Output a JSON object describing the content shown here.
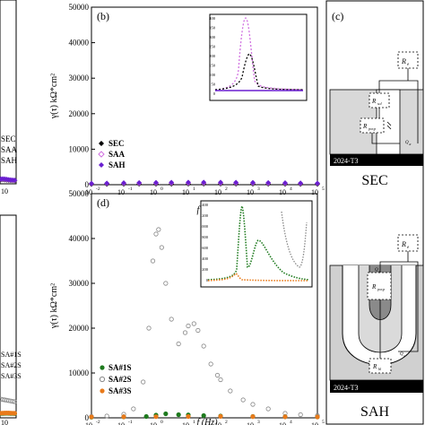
{
  "chart_data": [
    {
      "id": "a",
      "type": "scatter",
      "panel_label": "",
      "x": [
        0.01,
        0.1,
        1,
        10,
        100,
        1000,
        10000,
        100000
      ],
      "ytick_labels": [],
      "ylabel": "",
      "xlabel": "",
      "xtick_labels": [
        "10"
      ],
      "legend": [
        "SEC",
        "SAA",
        "SAH"
      ],
      "series": [
        {
          "name": "SEC",
          "color": "#000000",
          "marker": "diamond",
          "y": [
            400,
            420,
            380,
            300,
            250,
            200,
            180,
            160
          ]
        },
        {
          "name": "SAA",
          "color": "#d070e0",
          "marker": "diamond-open",
          "y": [
            500,
            520,
            480,
            400,
            320,
            260,
            220,
            200
          ]
        },
        {
          "name": "SAH",
          "color": "#6a1fd0",
          "marker": "diamond",
          "y": [
            600,
            640,
            600,
            520,
            420,
            340,
            300,
            260
          ]
        }
      ]
    },
    {
      "id": "b",
      "type": "scatter",
      "panel_label": "(b)",
      "xscale": "log",
      "xlim": [
        0.01,
        100000
      ],
      "ylim": [
        0,
        50000
      ],
      "yticks": [
        0,
        10000,
        20000,
        30000,
        40000,
        50000
      ],
      "ytick_labels": [
        "0",
        "10000",
        "20000",
        "30000",
        "40000",
        "50000"
      ],
      "xtick_labels": [
        "10",
        "10",
        "10",
        "10",
        "10",
        "10",
        "10",
        "10"
      ],
      "xtick_exponents": [
        "-2",
        "-1",
        "0",
        "1",
        "2",
        "3",
        "4",
        "5"
      ],
      "xlabel": "f (Hz)",
      "ylabel": "γ(τ) kΩ*cm²",
      "legend": [
        "SEC",
        "SAA",
        "SAH"
      ],
      "series": [
        {
          "name": "SEC",
          "color": "#000000",
          "marker": "diamond",
          "x": [
            0.01,
            0.03,
            0.1,
            0.3,
            1,
            3,
            10,
            30,
            100,
            300,
            1000,
            3000,
            10000,
            30000,
            100000
          ],
          "y": [
            120,
            150,
            180,
            200,
            210,
            220,
            230,
            240,
            240,
            230,
            220,
            200,
            180,
            160,
            150
          ]
        },
        {
          "name": "SAA",
          "color": "#d070e0",
          "marker": "diamond-open",
          "x": [
            0.01,
            0.03,
            0.1,
            0.3,
            1,
            3,
            10,
            30,
            100,
            300,
            1000,
            3000,
            10000,
            30000,
            100000
          ],
          "y": [
            250,
            300,
            350,
            380,
            400,
            420,
            430,
            440,
            430,
            420,
            400,
            380,
            350,
            320,
            300
          ]
        },
        {
          "name": "SAH",
          "color": "#6a1fd0",
          "marker": "diamond",
          "x": [
            0.01,
            0.03,
            0.1,
            0.3,
            1,
            3,
            10,
            30,
            100,
            300,
            1000,
            3000,
            10000,
            30000,
            100000
          ],
          "y": [
            350,
            420,
            500,
            560,
            600,
            640,
            660,
            680,
            660,
            640,
            600,
            560,
            500,
            450,
            400
          ]
        }
      ]
    },
    {
      "id": "c",
      "type": "diagram",
      "panel_label": "(c)",
      "labels": {
        "top_title": "SEC",
        "bottom_title": "SAH",
        "substrate_top": "2024-T3",
        "substrate_bottom": "2024-T3",
        "re": "R",
        "re_sub": "e",
        "rsol": "R",
        "rsol_sub": "sol",
        "rpor": "R",
        "rpor_sub": "por,p",
        "rb": "R",
        "rb_sub": "bl",
        "cpe_top": "Q",
        "cpe_top_sub": "dl",
        "cpe_mid": "Q",
        "cpe_mid_sub": "p",
        "cpe_bot": "Q",
        "cpe_bot_sub": "b"
      }
    },
    {
      "id": "d",
      "type": "scatter",
      "panel_label": "(d)",
      "xscale": "log",
      "xlim": [
        0.01,
        100000
      ],
      "ylim": [
        0,
        50000
      ],
      "yticks": [
        0,
        10000,
        20000,
        30000,
        40000,
        50000
      ],
      "ytick_labels": [
        "0",
        "10000",
        "20000",
        "30000",
        "40000",
        "50000"
      ],
      "xtick_labels": [
        "10",
        "10",
        "10",
        "10",
        "10",
        "10",
        "10",
        "10"
      ],
      "xtick_exponents": [
        "-2",
        "-1",
        "0",
        "1",
        "2",
        "3",
        "4",
        "5"
      ],
      "xlabel": "f (Hz)",
      "ylabel": "γ(τ) kΩ*cm²",
      "legend": [
        "SA#1S",
        "SA#2S",
        "SA#3S"
      ],
      "series": [
        {
          "name": "SA#1S",
          "color": "#1e7a1e",
          "marker": "circle",
          "x": [
            0.01,
            0.1,
            0.5,
            1,
            2,
            5,
            10,
            30,
            100,
            1000,
            10000,
            100000
          ],
          "y": [
            150,
            200,
            300,
            600,
            900,
            700,
            650,
            500,
            400,
            300,
            250,
            200
          ]
        },
        {
          "name": "SA#2S",
          "color": "#888888",
          "marker": "circle-open",
          "x": [
            0.01,
            0.03,
            0.1,
            0.2,
            0.4,
            0.6,
            0.8,
            1,
            1.2,
            1.5,
            2,
            3,
            5,
            8,
            10,
            15,
            20,
            30,
            50,
            80,
            100,
            200,
            500,
            1000,
            3000,
            10000,
            30000,
            100000
          ],
          "y": [
            300,
            400,
            800,
            2000,
            8000,
            20000,
            35000,
            41000,
            42000,
            38000,
            30000,
            22000,
            16500,
            19000,
            20500,
            21000,
            19500,
            16000,
            12000,
            9500,
            8500,
            6000,
            4000,
            3000,
            2000,
            1000,
            700,
            500
          ]
        },
        {
          "name": "SA#3S",
          "color": "#e87a1a",
          "marker": "circle",
          "x": [
            0.01,
            0.1,
            1,
            10,
            100,
            1000,
            10000,
            100000
          ],
          "y": [
            200,
            220,
            260,
            300,
            320,
            280,
            240,
            200
          ]
        }
      ]
    },
    {
      "id": "e",
      "type": "scatter",
      "panel_label": "",
      "x": [
        0.01,
        0.1,
        1,
        10,
        100,
        1000,
        10000,
        100000
      ],
      "ytick_labels": [],
      "ylabel": "",
      "xlabel": "",
      "xtick_labels": [
        "10"
      ],
      "legend": [
        "SA#1S",
        "SA#2S",
        "SA#3S"
      ],
      "series": [
        {
          "name": "SA#1S",
          "color": "#1e7a1e",
          "marker": "circle",
          "y": [
            200,
            220,
            240,
            260,
            240,
            220,
            200,
            180
          ]
        },
        {
          "name": "SA#2S",
          "color": "#888888",
          "marker": "circle-open",
          "y": [
            4200,
            4100,
            4000,
            3900,
            3800,
            3700,
            3600,
            3500
          ]
        },
        {
          "name": "SA#3S",
          "color": "#e87a1a",
          "marker": "circle",
          "y": [
            300,
            320,
            340,
            360,
            340,
            320,
            300,
            280
          ]
        }
      ]
    }
  ],
  "insets": {
    "b": {
      "ytick_labels": [
        "0",
        "50",
        "100",
        "150",
        "200",
        "250",
        "300",
        "350",
        "400"
      ],
      "series_colors": [
        "#000000",
        "#d070e0",
        "#6a1fd0"
      ]
    },
    "d": {
      "ytick_labels": [
        "0",
        "200",
        "400",
        "600",
        "800",
        "1000",
        "1200",
        "1400"
      ],
      "series_colors": [
        "#1e7a1e",
        "#888888",
        "#e87a1a"
      ]
    }
  }
}
